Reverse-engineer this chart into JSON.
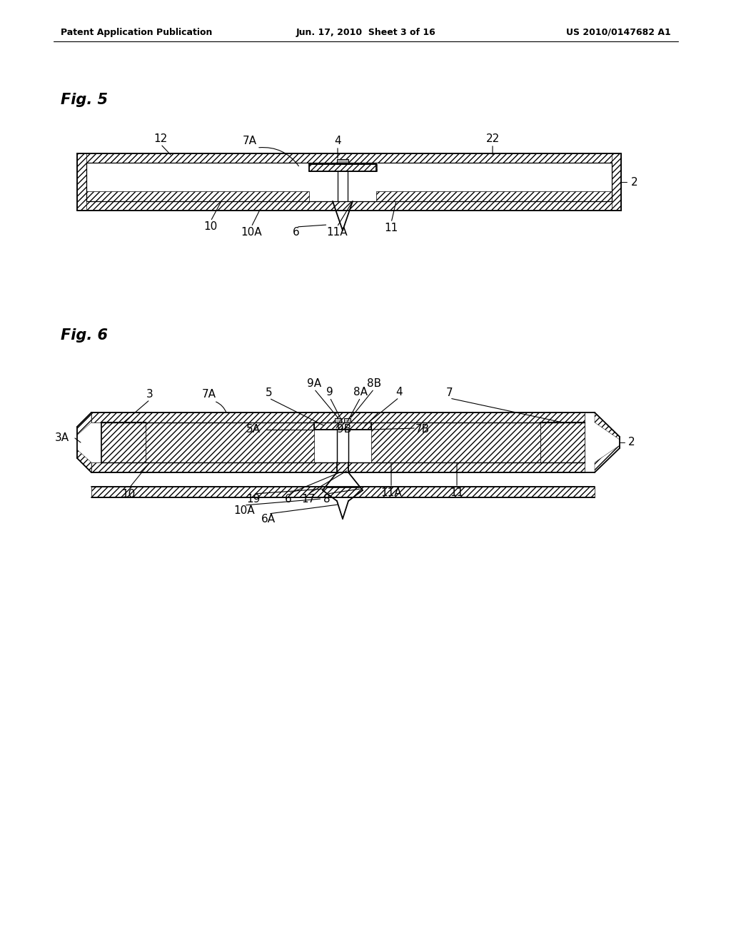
{
  "bg_color": "#ffffff",
  "line_color": "#000000",
  "header_left": "Patent Application Publication",
  "header_center": "Jun. 17, 2010  Sheet 3 of 16",
  "header_right": "US 2010/0147682 A1",
  "fig5_label": "Fig. 5",
  "fig6_label": "Fig. 6",
  "label_fontsize": 11,
  "header_fontsize": 9,
  "fig_label_fontsize": 15
}
